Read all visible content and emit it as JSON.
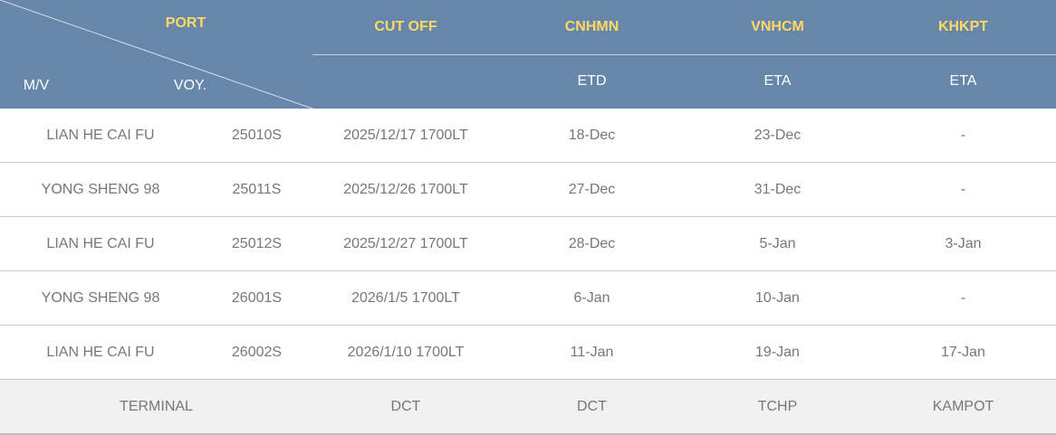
{
  "header": {
    "port": "PORT",
    "mv": "M/V",
    "voy": "VOY.",
    "cut_off": "CUT OFF",
    "ports": [
      {
        "code": "CNHMN",
        "sub": "ETD"
      },
      {
        "code": "VNHCM",
        "sub": "ETA"
      },
      {
        "code": "KHKPT",
        "sub": "ETA"
      }
    ]
  },
  "rows": [
    {
      "mv": "LIAN HE CAI FU",
      "voy": "25010S",
      "cutoff": "2025/12/17 1700LT",
      "cnhmn": "18-Dec",
      "vnhcm": "23-Dec",
      "khkpt": "-"
    },
    {
      "mv": "YONG SHENG 98",
      "voy": "25011S",
      "cutoff": "2025/12/26 1700LT",
      "cnhmn": "27-Dec",
      "vnhcm": "31-Dec",
      "khkpt": "-"
    },
    {
      "mv": "LIAN HE CAI FU",
      "voy": "25012S",
      "cutoff": "2025/12/27 1700LT",
      "cnhmn": "28-Dec",
      "vnhcm": "5-Jan",
      "khkpt": "3-Jan"
    },
    {
      "mv": "YONG SHENG 98",
      "voy": "26001S",
      "cutoff": "2026/1/5 1700LT",
      "cnhmn": "6-Jan",
      "vnhcm": "10-Jan",
      "khkpt": "-"
    },
    {
      "mv": "LIAN HE CAI FU",
      "voy": "26002S",
      "cutoff": "2026/1/10 1700LT",
      "cnhmn": "11-Jan",
      "vnhcm": "19-Jan",
      "khkpt": "17-Jan"
    }
  ],
  "terminal": {
    "label": "TERMINAL",
    "cutoff": "DCT",
    "cnhmn": "DCT",
    "vnhcm": "TCHP",
    "khkpt": "KAMPOT"
  },
  "colors": {
    "header_bg": "#6787aa",
    "header_accent": "#ffd966"
  }
}
